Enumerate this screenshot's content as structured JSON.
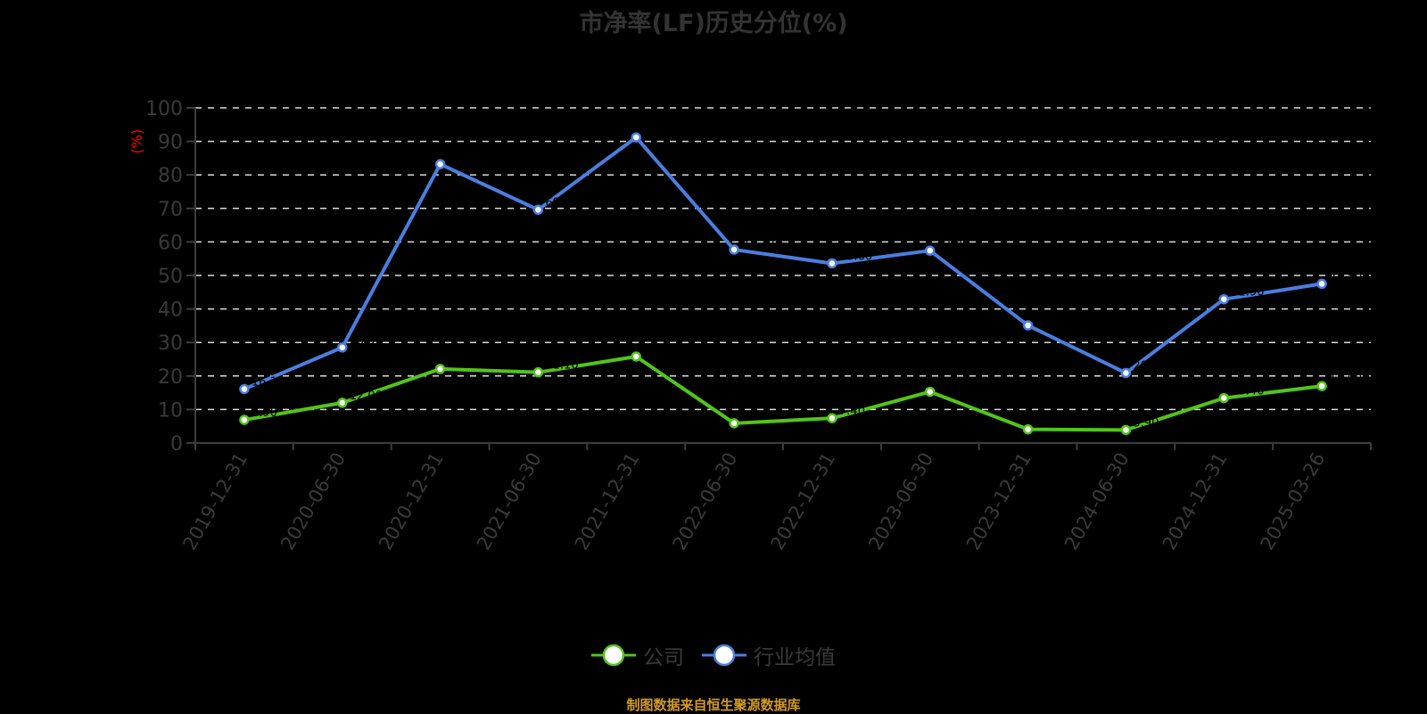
{
  "title": "市净率(LF)历史分位(%)",
  "footer": "制图数据来自恒生聚源数据库",
  "chart_data": {
    "type": "line",
    "title": "市净率(LF)历史分位(%)",
    "xlabel": "",
    "ylabel": "(%)",
    "ylim": [
      0,
      100
    ],
    "yticks": [
      0,
      10,
      20,
      30,
      40,
      50,
      60,
      70,
      80,
      90,
      100
    ],
    "grid": true,
    "legend_position": "bottom",
    "categories": [
      "2019-12-31",
      "2020-06-30",
      "2020-12-31",
      "2021-06-30",
      "2021-12-31",
      "2022-06-30",
      "2022-12-31",
      "2023-06-30",
      "2023-12-31",
      "2024-06-30",
      "2024-12-31",
      "2025-03-26"
    ],
    "series": [
      {
        "name": "公司",
        "color": "#52c41a",
        "values": [
          6.9,
          12.0,
          22.1,
          21.1,
          25.8,
          5.9,
          7.4,
          15.3,
          4.1,
          3.9,
          13.4,
          17.0
        ]
      },
      {
        "name": "行业均值",
        "color": "#4a7ee0",
        "values": [
          16.1,
          28.5,
          83.2,
          69.6,
          91.2,
          57.7,
          53.6,
          57.4,
          35.1,
          20.9,
          42.9,
          47.5
        ]
      }
    ]
  },
  "colors": {
    "background": "#000000",
    "axis": "#3d3d3d",
    "grid": "#dcdcdc",
    "ylabel": "#ff0000",
    "tick_text": "#3a3a3a",
    "footer": "#d49a1e"
  }
}
